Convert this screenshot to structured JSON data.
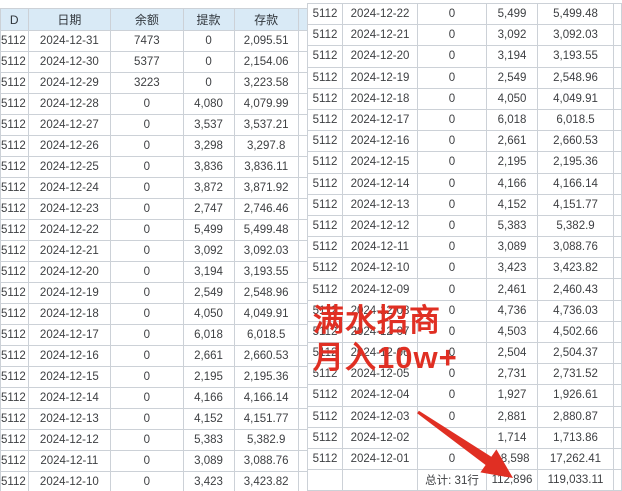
{
  "columns": [
    "D",
    "日期",
    "余额",
    "提款",
    "存款"
  ],
  "left_table": {
    "rows": [
      [
        "5112",
        "2024-12-31",
        "7473",
        "0",
        "2,095.51"
      ],
      [
        "5112",
        "2024-12-30",
        "5377",
        "0",
        "2,154.06"
      ],
      [
        "5112",
        "2024-12-29",
        "3223",
        "0",
        "3,223.58"
      ],
      [
        "5112",
        "2024-12-28",
        "0",
        "4,080",
        "4,079.99"
      ],
      [
        "5112",
        "2024-12-27",
        "0",
        "3,537",
        "3,537.21"
      ],
      [
        "5112",
        "2024-12-26",
        "0",
        "3,298",
        "3,297.8"
      ],
      [
        "5112",
        "2024-12-25",
        "0",
        "3,836",
        "3,836.11"
      ],
      [
        "5112",
        "2024-12-24",
        "0",
        "3,872",
        "3,871.92"
      ],
      [
        "5112",
        "2024-12-23",
        "0",
        "2,747",
        "2,746.46"
      ],
      [
        "5112",
        "2024-12-22",
        "0",
        "5,499",
        "5,499.48"
      ],
      [
        "5112",
        "2024-12-21",
        "0",
        "3,092",
        "3,092.03"
      ],
      [
        "5112",
        "2024-12-20",
        "0",
        "3,194",
        "3,193.55"
      ],
      [
        "5112",
        "2024-12-19",
        "0",
        "2,549",
        "2,548.96"
      ],
      [
        "5112",
        "2024-12-18",
        "0",
        "4,050",
        "4,049.91"
      ],
      [
        "5112",
        "2024-12-17",
        "0",
        "6,018",
        "6,018.5"
      ],
      [
        "5112",
        "2024-12-16",
        "0",
        "2,661",
        "2,660.53"
      ],
      [
        "5112",
        "2024-12-15",
        "0",
        "2,195",
        "2,195.36"
      ],
      [
        "5112",
        "2024-12-14",
        "0",
        "4,166",
        "4,166.14"
      ],
      [
        "5112",
        "2024-12-13",
        "0",
        "4,152",
        "4,151.77"
      ],
      [
        "5112",
        "2024-12-12",
        "0",
        "5,383",
        "5,382.9"
      ],
      [
        "5112",
        "2024-12-11",
        "0",
        "3,089",
        "3,088.76"
      ],
      [
        "5112",
        "2024-12-10",
        "0",
        "3,423",
        "3,423.82"
      ]
    ]
  },
  "right_table": {
    "rows": [
      [
        "5112",
        "2024-12-22",
        "0",
        "5,499",
        "5,499.48"
      ],
      [
        "5112",
        "2024-12-21",
        "0",
        "3,092",
        "3,092.03"
      ],
      [
        "5112",
        "2024-12-20",
        "0",
        "3,194",
        "3,193.55"
      ],
      [
        "5112",
        "2024-12-19",
        "0",
        "2,549",
        "2,548.96"
      ],
      [
        "5112",
        "2024-12-18",
        "0",
        "4,050",
        "4,049.91"
      ],
      [
        "5112",
        "2024-12-17",
        "0",
        "6,018",
        "6,018.5"
      ],
      [
        "5112",
        "2024-12-16",
        "0",
        "2,661",
        "2,660.53"
      ],
      [
        "5112",
        "2024-12-15",
        "0",
        "2,195",
        "2,195.36"
      ],
      [
        "5112",
        "2024-12-14",
        "0",
        "4,166",
        "4,166.14"
      ],
      [
        "5112",
        "2024-12-13",
        "0",
        "4,152",
        "4,151.77"
      ],
      [
        "5112",
        "2024-12-12",
        "0",
        "5,383",
        "5,382.9"
      ],
      [
        "5112",
        "2024-12-11",
        "0",
        "3,089",
        "3,088.76"
      ],
      [
        "5112",
        "2024-12-10",
        "0",
        "3,423",
        "3,423.82"
      ],
      [
        "5112",
        "2024-12-09",
        "0",
        "2,461",
        "2,460.43"
      ],
      [
        "5112",
        "2024-12-08",
        "0",
        "4,736",
        "4,736.03"
      ],
      [
        "5112",
        "2024-12-07",
        "0",
        "4,503",
        "4,502.66"
      ],
      [
        "5112",
        "2024-12-06",
        "0",
        "2,504",
        "2,504.37"
      ],
      [
        "5112",
        "2024-12-05",
        "0",
        "2,731",
        "2,731.52"
      ],
      [
        "5112",
        "2024-12-04",
        "0",
        "1,927",
        "1,926.61"
      ],
      [
        "5112",
        "2024-12-03",
        "0",
        "2,881",
        "2,880.87"
      ],
      [
        "5112",
        "2024-12-02",
        "",
        "1,714",
        "1,713.86"
      ],
      [
        "5112",
        "2024-12-01",
        "0",
        "18,598",
        "17,262.41"
      ]
    ],
    "total_row": [
      "",
      "",
      "总计: 31行",
      "112,896",
      "119,033.11"
    ]
  },
  "overlay": {
    "line1": "满水招商",
    "line2": "月入10w+"
  },
  "colors": {
    "header_bg": "#d9eaf6",
    "header_text": "#31373d",
    "cell_text": "#3d3f42",
    "grid_border": "#ccd1d7",
    "accent_red": "#e02f23"
  }
}
